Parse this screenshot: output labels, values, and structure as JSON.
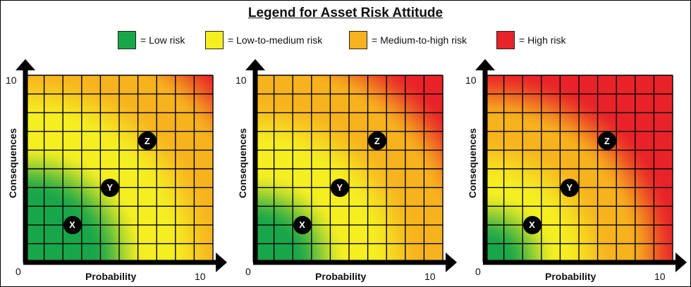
{
  "title": "Legend for Asset Risk Attitude",
  "legend": [
    {
      "label": "= Low risk",
      "color": "#19a64a"
    },
    {
      "label": "= Low-to-medium risk",
      "color": "#f5ef22"
    },
    {
      "label": "= Medium-to-high risk",
      "color": "#f7b31e"
    },
    {
      "label": "= High risk",
      "color": "#e82329"
    }
  ],
  "axes": {
    "xlabel": "Probability",
    "ylabel": "Consequences",
    "origin_label": "0",
    "x_max_label": "10",
    "y_max_label": "10"
  },
  "chart_data": [
    {
      "type": "heatmap",
      "xlim": [
        0,
        10
      ],
      "ylim": [
        0,
        10
      ],
      "grid": "10x10",
      "risk_thresholds": [
        5,
        9,
        13
      ],
      "points": [
        {
          "label": "X",
          "x": 2.5,
          "y": 2.0
        },
        {
          "label": "Y",
          "x": 4.5,
          "y": 4.0
        },
        {
          "label": "Z",
          "x": 6.5,
          "y": 6.5
        }
      ]
    },
    {
      "type": "heatmap",
      "xlim": [
        0,
        10
      ],
      "ylim": [
        0,
        10
      ],
      "grid": "10x10",
      "risk_thresholds": [
        3.5,
        7.5,
        11.5
      ],
      "points": [
        {
          "label": "X",
          "x": 2.5,
          "y": 2.0
        },
        {
          "label": "Y",
          "x": 4.5,
          "y": 4.0
        },
        {
          "label": "Z",
          "x": 6.5,
          "y": 6.5
        }
      ]
    },
    {
      "type": "heatmap",
      "xlim": [
        0,
        10
      ],
      "ylim": [
        0,
        10
      ],
      "grid": "10x10",
      "risk_thresholds": [
        2.5,
        5.5,
        9
      ],
      "points": [
        {
          "label": "X",
          "x": 2.5,
          "y": 2.0
        },
        {
          "label": "Y",
          "x": 4.5,
          "y": 4.0
        },
        {
          "label": "Z",
          "x": 6.5,
          "y": 6.5
        }
      ]
    }
  ]
}
